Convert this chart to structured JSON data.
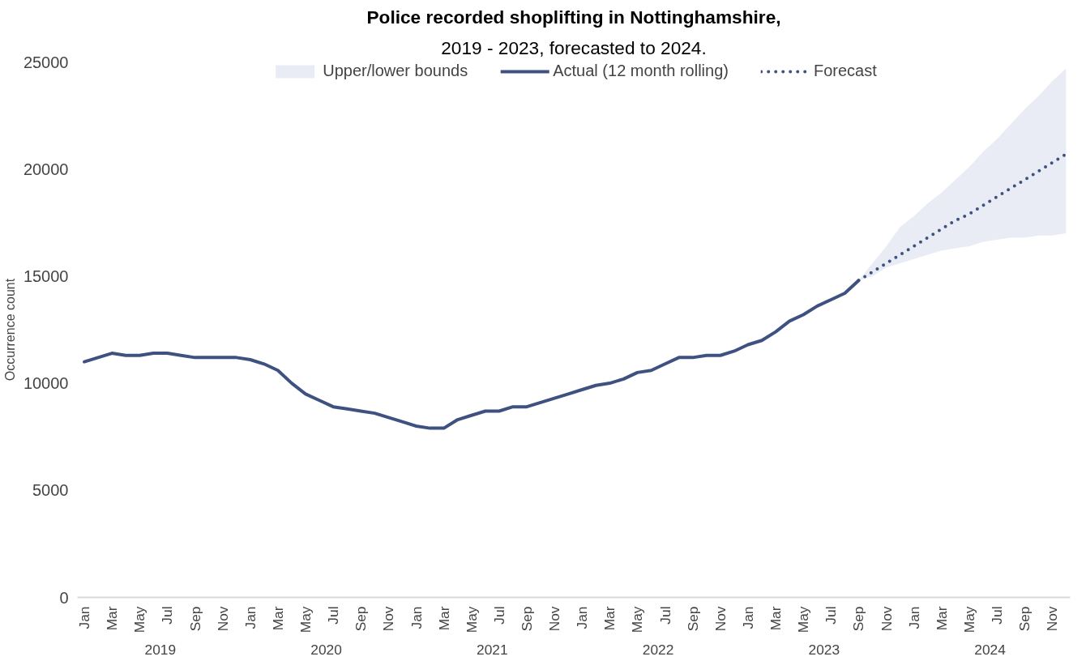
{
  "chart_data": {
    "type": "line",
    "title": "Police recorded shoplifting in Nottinghamshire,",
    "subtitle": "2019 - 2023, forecasted to 2024.",
    "ylabel": "Occurrence count",
    "categories": [
      "Jan",
      null,
      "Mar",
      null,
      "May",
      null,
      "Jul",
      null,
      "Sep",
      null,
      "Nov",
      null,
      "Jan",
      null,
      "Mar",
      null,
      "May",
      null,
      "Jul",
      null,
      "Sep",
      null,
      "Nov",
      null,
      "Jan",
      null,
      "Mar",
      null,
      "May",
      null,
      "Jul",
      null,
      "Sep",
      null,
      "Nov",
      null,
      "Jan",
      null,
      "Mar",
      null,
      "May",
      null,
      "Jul",
      null,
      "Sep",
      null,
      "Nov",
      null,
      "Jan",
      null,
      "Mar",
      null,
      "May",
      null,
      "Jul",
      null,
      "Sep",
      null,
      "Nov",
      null,
      "Jan",
      null,
      "Mar",
      null,
      "May",
      null,
      "Jul",
      null,
      "Sep",
      null,
      "Nov",
      null
    ],
    "annotations": [
      "2019",
      "2020",
      "2021",
      "2022",
      "2023",
      "2024"
    ],
    "series": [
      {
        "name": "Upper/lower bounds",
        "type": "area",
        "color": "#e9ecf5",
        "values": [
          null,
          null,
          null,
          null,
          null,
          null,
          null,
          null,
          null,
          null,
          null,
          null,
          null,
          null,
          null,
          null,
          null,
          null,
          null,
          null,
          null,
          null,
          null,
          null,
          null,
          null,
          null,
          null,
          null,
          null,
          null,
          null,
          null,
          null,
          null,
          null,
          null,
          null,
          null,
          null,
          null,
          null,
          null,
          null,
          null,
          null,
          null,
          null,
          null,
          null,
          null,
          null,
          null,
          null,
          null,
          null,
          null,
          null,
          null,
          null,
          null,
          null,
          null,
          null,
          null,
          null,
          null,
          null,
          null,
          null,
          null,
          null
        ],
        "lower": [
          null,
          null,
          null,
          null,
          null,
          null,
          null,
          null,
          null,
          null,
          null,
          null,
          null,
          null,
          null,
          null,
          null,
          null,
          null,
          null,
          null,
          null,
          null,
          null,
          null,
          null,
          null,
          null,
          null,
          null,
          null,
          null,
          null,
          null,
          null,
          null,
          null,
          null,
          null,
          null,
          null,
          null,
          null,
          null,
          null,
          null,
          null,
          null,
          null,
          null,
          null,
          null,
          null,
          null,
          null,
          null,
          14800,
          15000,
          15400,
          15600,
          15800,
          16000,
          16200,
          16300,
          16400,
          16600,
          16700,
          16800,
          16800,
          16900,
          16900,
          17000
        ],
        "upper": [
          null,
          null,
          null,
          null,
          null,
          null,
          null,
          null,
          null,
          null,
          null,
          null,
          null,
          null,
          null,
          null,
          null,
          null,
          null,
          null,
          null,
          null,
          null,
          null,
          null,
          null,
          null,
          null,
          null,
          null,
          null,
          null,
          null,
          null,
          null,
          null,
          null,
          null,
          null,
          null,
          null,
          null,
          null,
          null,
          null,
          null,
          null,
          null,
          null,
          null,
          null,
          null,
          null,
          null,
          null,
          null,
          14800,
          15600,
          16400,
          17300,
          17800,
          18400,
          18900,
          19500,
          20100,
          20800,
          21400,
          22100,
          22800,
          23400,
          24100,
          24700
        ]
      },
      {
        "name": "Actual (12 month rolling)",
        "color": "#3e5180",
        "line_style": "solid",
        "values": [
          11000,
          11200,
          11400,
          11300,
          11300,
          11400,
          11400,
          11300,
          11200,
          11200,
          11200,
          11200,
          11100,
          10900,
          10600,
          10000,
          9500,
          9200,
          8900,
          8800,
          8700,
          8600,
          8400,
          8200,
          8000,
          7900,
          7900,
          8300,
          8500,
          8700,
          8700,
          8900,
          8900,
          9100,
          9300,
          9500,
          9700,
          9900,
          10000,
          10200,
          10500,
          10600,
          10900,
          11200,
          11200,
          11300,
          11300,
          11500,
          11800,
          12000,
          12400,
          12900,
          13200,
          13600,
          13900,
          14200,
          14800,
          null,
          null,
          null,
          null,
          null,
          null,
          null,
          null,
          null,
          null,
          null,
          null,
          null,
          null,
          null
        ]
      },
      {
        "name": "Forecast",
        "color": "#3e5180",
        "line_style": "dotted",
        "values": [
          null,
          null,
          null,
          null,
          null,
          null,
          null,
          null,
          null,
          null,
          null,
          null,
          null,
          null,
          null,
          null,
          null,
          null,
          null,
          null,
          null,
          null,
          null,
          null,
          null,
          null,
          null,
          null,
          null,
          null,
          null,
          null,
          null,
          null,
          null,
          null,
          null,
          null,
          null,
          null,
          null,
          null,
          null,
          null,
          null,
          null,
          null,
          null,
          null,
          null,
          null,
          null,
          null,
          null,
          null,
          null,
          14800,
          15200,
          15600,
          16000,
          16400,
          16800,
          17200,
          17600,
          17900,
          18300,
          18700,
          19100,
          19500,
          19900,
          20300,
          20700
        ]
      }
    ],
    "ylim": [
      0,
      25000
    ],
    "yticks": [
      0,
      5000,
      10000,
      15000,
      20000,
      25000
    ],
    "grid": false,
    "legend": "top",
    "marker": "none"
  }
}
